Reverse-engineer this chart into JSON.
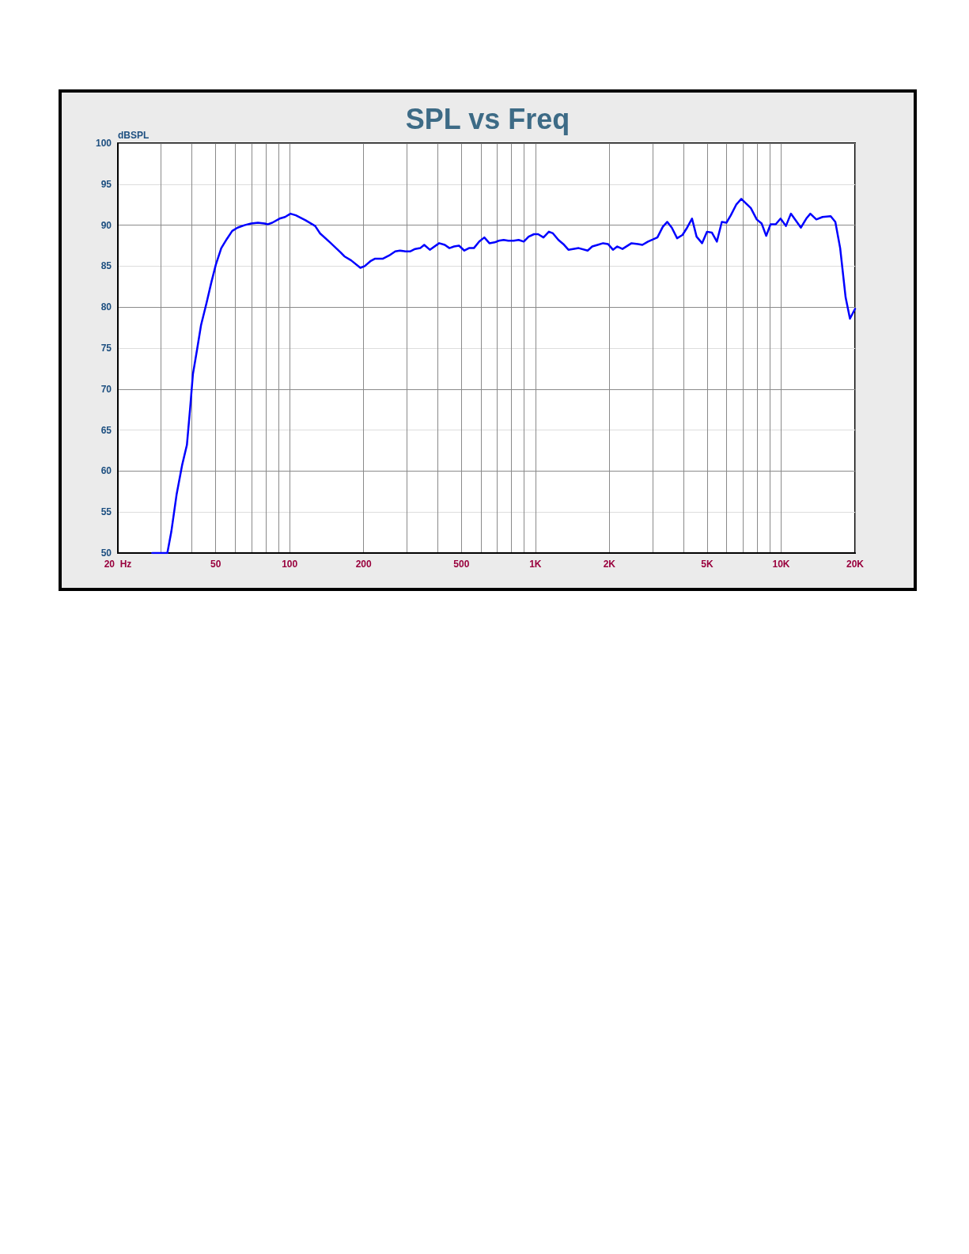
{
  "chart_data": {
    "type": "line",
    "title": "SPL vs Freq",
    "ylabel": "dBSPL",
    "x": [
      27.6,
      31.8,
      33.0,
      34.7,
      36.5,
      38.2,
      39.4,
      40.4,
      42.0,
      43.6,
      45.9,
      48.0,
      50.1,
      52.7,
      55.5,
      58.4,
      61.4,
      65.5,
      69.7,
      74.3,
      79.2,
      81.2,
      85.0,
      91.0,
      95.8,
      100.8,
      106,
      116,
      127,
      133,
      146,
      161,
      167,
      178,
      194,
      202,
      213,
      222,
      239,
      254,
      269,
      281,
      296,
      309,
      324,
      340,
      353,
      372,
      406,
      428,
      447,
      467,
      489,
      514,
      537,
      562,
      591,
      620,
      650,
      683,
      710,
      743,
      776,
      816,
      855,
      897,
      939,
      987,
      1026,
      1079,
      1135,
      1179,
      1241,
      1299,
      1363,
      1501,
      1632,
      1704,
      1793,
      1886,
      1975,
      2069,
      2154,
      2262,
      2462,
      2616,
      2726,
      2873,
      3137,
      3300,
      3442,
      3590,
      3774,
      3968,
      4145,
      4339,
      4529,
      4768,
      4992,
      5225,
      5479,
      5737,
      5991,
      6241,
      6565,
      6885,
      7526,
      7958,
      8331,
      8698,
      9056,
      9505,
      9949,
      10460,
      10960,
      12040,
      12660,
      13150,
      13910,
      14740,
      15910,
      16620,
      17390,
      18300,
      19060,
      20000
    ],
    "series": [
      {
        "color": "#0000ff",
        "values": [
          50,
          50,
          52.6,
          57.2,
          60.7,
          63.2,
          67.8,
          71.8,
          74.8,
          77.8,
          80.5,
          83.0,
          85.2,
          87.2,
          88.3,
          89.3,
          89.7,
          90.0,
          90.2,
          90.3,
          90.2,
          90.1,
          90.3,
          90.8,
          91.0,
          91.4,
          91.2,
          90.6,
          89.9,
          89.0,
          87.9,
          86.7,
          86.2,
          85.7,
          84.8,
          85.0,
          85.6,
          85.9,
          85.9,
          86.3,
          86.8,
          86.9,
          86.8,
          86.8,
          87.1,
          87.2,
          87.6,
          87.0,
          87.8,
          87.6,
          87.2,
          87.4,
          87.5,
          86.9,
          87.2,
          87.2,
          88.0,
          88.5,
          87.8,
          87.9,
          88.1,
          88.2,
          88.1,
          88.1,
          88.2,
          88.0,
          88.6,
          88.9,
          88.9,
          88.5,
          89.2,
          89.0,
          88.2,
          87.7,
          87.0,
          87.2,
          86.9,
          87.4,
          87.6,
          87.8,
          87.7,
          87.0,
          87.4,
          87.1,
          87.8,
          87.7,
          87.6,
          88.0,
          88.5,
          89.8,
          90.4,
          89.7,
          88.4,
          88.8,
          89.7,
          90.8,
          88.6,
          87.8,
          89.2,
          89.1,
          88.0,
          90.4,
          90.3,
          91.2,
          92.5,
          93.2,
          92.1,
          90.7,
          90.2,
          88.7,
          90.1,
          90.1,
          90.8,
          89.9,
          91.4,
          89.7,
          90.8,
          91.4,
          90.7,
          91.0,
          91.1,
          90.4,
          87.2,
          81.2,
          78.6,
          79.8
        ]
      }
    ],
    "log": "x",
    "xlim": [
      20,
      20000
    ],
    "xticks": [
      {
        "value": 20,
        "label": "20  Hz"
      },
      {
        "value": 30,
        "label": null
      },
      {
        "value": 40,
        "label": null
      },
      50,
      {
        "value": 60,
        "label": null
      },
      {
        "value": 70,
        "label": null
      },
      {
        "value": 80,
        "label": null
      },
      {
        "value": 90,
        "label": null
      },
      100,
      200,
      {
        "value": 300,
        "label": null
      },
      {
        "value": 400,
        "label": null
      },
      500,
      {
        "value": 600,
        "label": null
      },
      {
        "value": 700,
        "label": null
      },
      {
        "value": 800,
        "label": null
      },
      {
        "value": 900,
        "label": null
      },
      {
        "value": 1000,
        "label": "1K"
      },
      {
        "value": 2000,
        "label": "2K"
      },
      {
        "value": 3000,
        "label": null
      },
      {
        "value": 4000,
        "label": null
      },
      {
        "value": 5000,
        "label": "5K"
      },
      {
        "value": 6000,
        "label": null
      },
      {
        "value": 7000,
        "label": null
      },
      {
        "value": 8000,
        "label": null
      },
      {
        "value": 9000,
        "label": null
      },
      {
        "value": 10000,
        "label": "10K"
      },
      {
        "value": 20000,
        "label": "20K"
      }
    ],
    "ylim": [
      50,
      100
    ],
    "yticks": [
      50,
      55,
      60,
      65,
      70,
      75,
      80,
      85,
      90,
      95,
      100
    ],
    "grid": true,
    "marker": "none",
    "line_style": "solid"
  }
}
